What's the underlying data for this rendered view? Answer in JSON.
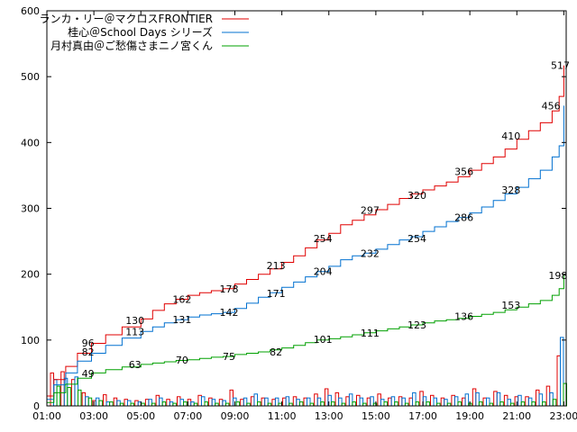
{
  "chart_data": {
    "type": "line",
    "title": "",
    "xlabel": "",
    "ylabel": "",
    "ylim": [
      0,
      600
    ],
    "y_ticks": [
      "0",
      "100",
      "200",
      "300",
      "400",
      "500",
      "600"
    ],
    "x_ticks": [
      "01:00",
      "03:00",
      "05:00",
      "07:00",
      "09:00",
      "11:00",
      "13:00",
      "15:00",
      "17:00",
      "19:00",
      "21:00",
      "23:00"
    ],
    "xlim": [
      1,
      23.1
    ],
    "legend_position": "top-left",
    "grid": false,
    "series": [
      {
        "name": "ランカ・リー＠マクロスFRONTIER",
        "color": "#e00000",
        "x": [
          1,
          1.3,
          1.8,
          2.3,
          2.9,
          3.5,
          4.2,
          5.0,
          5.5,
          6.0,
          6.5,
          7.0,
          7.5,
          8.0,
          8.5,
          9.0,
          9.5,
          10.0,
          10.5,
          11.0,
          11.5,
          12.0,
          12.5,
          13.0,
          13.5,
          14.0,
          14.5,
          15.0,
          15.5,
          16.0,
          16.5,
          17.0,
          17.5,
          18.0,
          18.5,
          19.0,
          19.5,
          20.0,
          20.5,
          21.0,
          21.5,
          22.0,
          22.5,
          22.8,
          23.0
        ],
        "y": [
          15,
          40,
          60,
          80,
          95,
          108,
          120,
          132,
          145,
          155,
          162,
          168,
          172,
          175,
          178,
          185,
          192,
          200,
          208,
          218,
          228,
          240,
          252,
          262,
          275,
          282,
          290,
          298,
          306,
          315,
          322,
          328,
          334,
          340,
          348,
          358,
          368,
          378,
          390,
          405,
          418,
          430,
          448,
          470,
          517
        ],
        "labels": [
          {
            "x": 2.75,
            "y": 96,
            "text": "96"
          },
          {
            "x": 4.75,
            "y": 130,
            "text": "130"
          },
          {
            "x": 6.75,
            "y": 162,
            "text": "162"
          },
          {
            "x": 8.75,
            "y": 178,
            "text": "178"
          },
          {
            "x": 10.75,
            "y": 213,
            "text": "213"
          },
          {
            "x": 12.75,
            "y": 254,
            "text": "254"
          },
          {
            "x": 14.75,
            "y": 297,
            "text": "297"
          },
          {
            "x": 16.75,
            "y": 320,
            "text": "320"
          },
          {
            "x": 18.75,
            "y": 356,
            "text": "356"
          },
          {
            "x": 20.75,
            "y": 410,
            "text": "410"
          },
          {
            "x": 22.45,
            "y": 456,
            "text": "456"
          },
          {
            "x": 22.85,
            "y": 517,
            "text": "517"
          }
        ],
        "bars": [
          50,
          52,
          40,
          20,
          8,
          17,
          12,
          10,
          8,
          10,
          16,
          10,
          14,
          10,
          16,
          12,
          10,
          24,
          10,
          14,
          12,
          10,
          12,
          14,
          12,
          18,
          26,
          20,
          14,
          16,
          12,
          18,
          12,
          14,
          12,
          22,
          16,
          12,
          16,
          12,
          26,
          12,
          22,
          16,
          14,
          14,
          24,
          30,
          76
        ]
      },
      {
        "name": "桂心＠School Days シリーズ",
        "color": "#0070d0",
        "x": [
          1,
          1.3,
          1.8,
          2.3,
          2.9,
          3.5,
          4.2,
          5.0,
          5.5,
          6.0,
          6.5,
          7.0,
          7.5,
          8.0,
          8.5,
          9.0,
          9.5,
          10.0,
          10.5,
          11.0,
          11.5,
          12.0,
          12.5,
          13.0,
          13.5,
          14.0,
          14.5,
          15.0,
          15.5,
          16.0,
          16.5,
          17.0,
          17.5,
          18.0,
          18.5,
          19.0,
          19.5,
          20.0,
          20.5,
          21.0,
          21.5,
          22.0,
          22.5,
          22.8,
          23.0
        ],
        "y": [
          10,
          32,
          50,
          68,
          80,
          92,
          103,
          113,
          120,
          126,
          131,
          135,
          138,
          140,
          142,
          148,
          156,
          165,
          172,
          180,
          188,
          196,
          204,
          212,
          222,
          228,
          232,
          238,
          245,
          252,
          257,
          265,
          272,
          280,
          286,
          293,
          302,
          312,
          322,
          332,
          345,
          358,
          378,
          395,
          456
        ],
        "labels": [
          {
            "x": 2.75,
            "y": 82,
            "text": "82"
          },
          {
            "x": 4.75,
            "y": 113,
            "text": "113"
          },
          {
            "x": 6.75,
            "y": 131,
            "text": "131"
          },
          {
            "x": 8.75,
            "y": 142,
            "text": "142"
          },
          {
            "x": 10.75,
            "y": 171,
            "text": "171"
          },
          {
            "x": 12.75,
            "y": 204,
            "text": "204"
          },
          {
            "x": 14.75,
            "y": 232,
            "text": "232"
          },
          {
            "x": 16.75,
            "y": 254,
            "text": "254"
          },
          {
            "x": 18.75,
            "y": 286,
            "text": "286"
          },
          {
            "x": 20.75,
            "y": 328,
            "text": "328"
          }
        ],
        "bars": [
          40,
          42,
          44,
          14,
          12,
          6,
          8,
          8,
          6,
          10,
          12,
          6,
          10,
          6,
          14,
          10,
          8,
          12,
          12,
          18,
          12,
          12,
          14,
          10,
          12,
          12,
          16,
          12,
          18,
          12,
          14,
          10,
          14,
          12,
          20,
          14,
          12,
          10,
          14,
          18,
          20,
          12,
          20,
          10,
          16,
          12,
          18,
          20,
          104
        ]
      },
      {
        "name": "月村真由＠ご愁傷さまニノ宮くん",
        "color": "#00a000",
        "x": [
          1,
          1.3,
          1.8,
          2.3,
          2.9,
          3.5,
          4.2,
          5.0,
          5.5,
          6.0,
          6.5,
          7.0,
          7.5,
          8.0,
          8.5,
          9.0,
          9.5,
          10.0,
          10.5,
          11.0,
          11.5,
          12.0,
          12.5,
          13.0,
          13.5,
          14.0,
          14.5,
          15.0,
          15.5,
          16.0,
          16.5,
          17.0,
          17.5,
          18.0,
          18.5,
          19.0,
          19.5,
          20.0,
          20.5,
          21.0,
          21.5,
          22.0,
          22.5,
          22.8,
          23.0
        ],
        "y": [
          5,
          20,
          33,
          42,
          50,
          55,
          59,
          63,
          65,
          67,
          69,
          70,
          72,
          74,
          75,
          78,
          80,
          82,
          85,
          88,
          92,
          96,
          100,
          102,
          105,
          108,
          111,
          114,
          117,
          120,
          123,
          126,
          129,
          131,
          133,
          136,
          139,
          142,
          146,
          150,
          155,
          160,
          168,
          178,
          198
        ],
        "labels": [
          {
            "x": 2.75,
            "y": 49,
            "text": "49"
          },
          {
            "x": 4.75,
            "y": 63,
            "text": "63"
          },
          {
            "x": 6.75,
            "y": 70,
            "text": "70"
          },
          {
            "x": 8.75,
            "y": 75,
            "text": "75"
          },
          {
            "x": 10.75,
            "y": 82,
            "text": "82"
          },
          {
            "x": 12.75,
            "y": 101,
            "text": "101"
          },
          {
            "x": 14.75,
            "y": 111,
            "text": "111"
          },
          {
            "x": 16.75,
            "y": 123,
            "text": "123"
          },
          {
            "x": 18.75,
            "y": 136,
            "text": "136"
          },
          {
            "x": 20.75,
            "y": 153,
            "text": "153"
          },
          {
            "x": 22.75,
            "y": 198,
            "text": "198"
          }
        ],
        "bars": [
          30,
          28,
          24,
          12,
          8,
          6,
          4,
          4,
          4,
          4,
          6,
          4,
          6,
          4,
          6,
          4,
          4,
          6,
          4,
          6,
          4,
          4,
          4,
          6,
          4,
          6,
          6,
          4,
          6,
          4,
          4,
          6,
          6,
          4,
          6,
          6,
          4,
          4,
          6,
          4,
          6,
          4,
          6,
          4,
          6,
          6,
          6,
          10,
          34
        ]
      }
    ]
  }
}
